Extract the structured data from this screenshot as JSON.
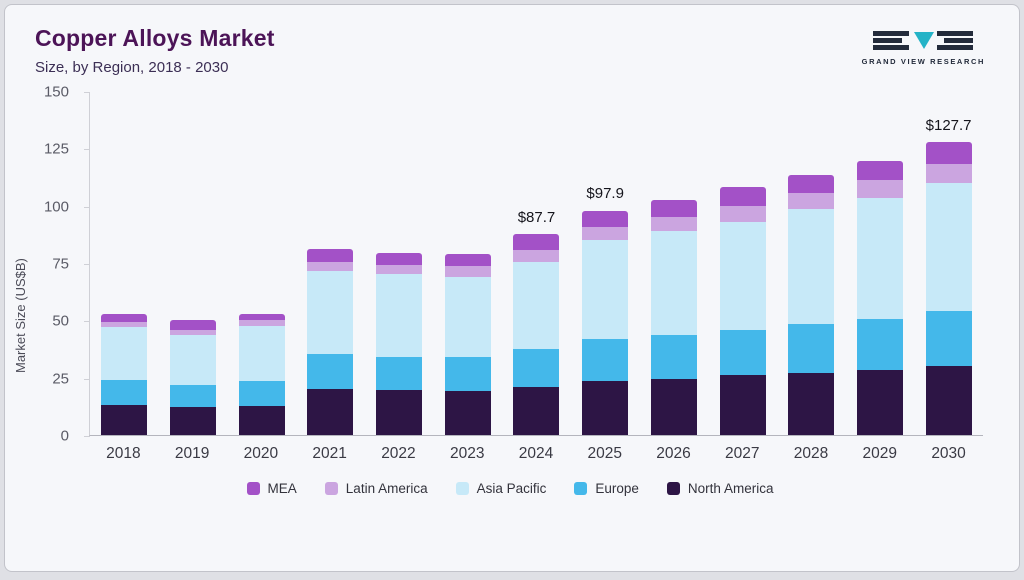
{
  "header": {
    "title": "Copper Alloys Market",
    "subtitle": "Size, by Region, 2018 - 2030"
  },
  "logo": {
    "name": "Grand View Research",
    "text": "GRAND VIEW RESEARCH",
    "colors": {
      "dark": "#232b3b",
      "teal": "#24b3c7"
    }
  },
  "chart_data": {
    "type": "bar",
    "stacked": true,
    "title": "Copper Alloys Market Size, by Region, 2018 - 2030",
    "xlabel": "",
    "ylabel": "Market Size (US$B)",
    "ylim": [
      0,
      150
    ],
    "yticks": [
      0,
      25,
      50,
      75,
      100,
      125,
      150
    ],
    "grid": false,
    "legend_position": "bottom",
    "categories": [
      "2018",
      "2019",
      "2020",
      "2021",
      "2022",
      "2023",
      "2024",
      "2025",
      "2026",
      "2027",
      "2028",
      "2029",
      "2030"
    ],
    "series": [
      {
        "name": "North America",
        "color": "#2d1545",
        "values": [
          13,
          12,
          12.5,
          20,
          19.5,
          19,
          21,
          23.5,
          24.5,
          26,
          27,
          28.5,
          30
        ]
      },
      {
        "name": "Europe",
        "color": "#44b8ea",
        "values": [
          11,
          10,
          11,
          15.5,
          14.5,
          15,
          16.5,
          18.5,
          19,
          20,
          21.5,
          22,
          24
        ]
      },
      {
        "name": "Asia Pacific",
        "color": "#c7e9f8",
        "values": [
          23,
          21.5,
          24,
          36,
          36,
          35,
          38,
          43,
          45.5,
          47,
          50,
          53,
          56
        ]
      },
      {
        "name": "Latin America",
        "color": "#cba5e0",
        "values": [
          2.5,
          2.5,
          2.5,
          4,
          4,
          4.5,
          5,
          5.5,
          6,
          7,
          7,
          7.5,
          8
        ]
      },
      {
        "name": "MEA",
        "color": "#a351c7",
        "values": [
          3.5,
          4,
          3,
          5.5,
          5.5,
          5.5,
          7.2,
          7.4,
          7.5,
          8,
          8,
          8.5,
          9.7
        ]
      }
    ],
    "totals_shown": [
      {
        "category": "2024",
        "label": "$87.7"
      },
      {
        "category": "2025",
        "label": "$97.9"
      },
      {
        "category": "2030",
        "label": "$127.7"
      }
    ],
    "legend": [
      "MEA",
      "Latin America",
      "Asia Pacific",
      "Europe",
      "North America"
    ]
  }
}
